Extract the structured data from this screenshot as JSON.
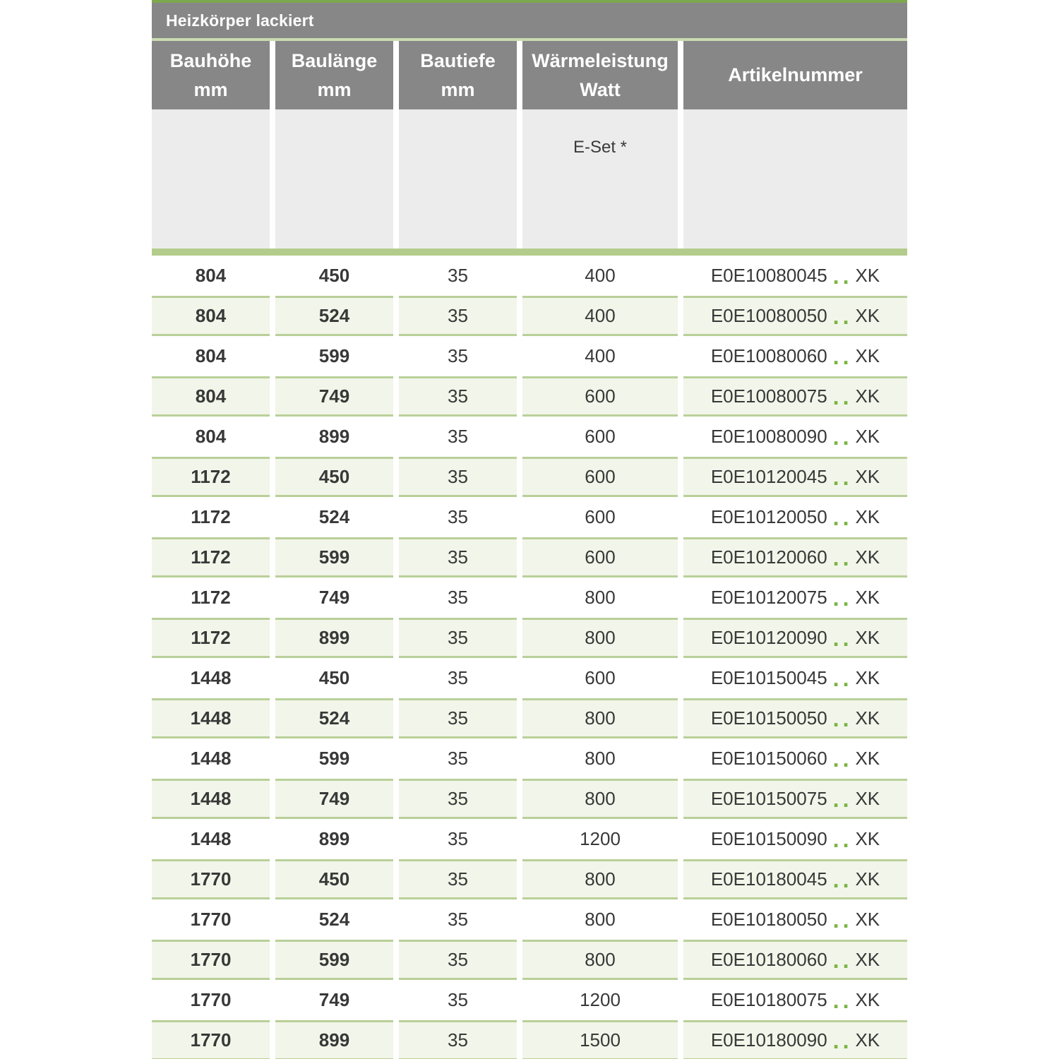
{
  "table": {
    "title": "Heizkörper lackiert",
    "columns": [
      {
        "line1": "Bauhöhe",
        "line2": "mm"
      },
      {
        "line1": "Baulänge",
        "line2": "mm"
      },
      {
        "line1": "Bautiefe",
        "line2": "mm"
      },
      {
        "line1": "Wärmeleistung",
        "line2": "Watt"
      },
      {
        "line1": "Artikelnummer",
        "line2": ""
      }
    ],
    "subheader": {
      "eset_label": "E-Set *"
    },
    "rows": [
      {
        "bauhoehe": "804",
        "baulaenge": "450",
        "bautiefe": "35",
        "watt": "400",
        "artikel": "E0E10080045",
        "dots": "..",
        "suffix": "XK"
      },
      {
        "bauhoehe": "804",
        "baulaenge": "524",
        "bautiefe": "35",
        "watt": "400",
        "artikel": "E0E10080050",
        "dots": "..",
        "suffix": "XK"
      },
      {
        "bauhoehe": "804",
        "baulaenge": "599",
        "bautiefe": "35",
        "watt": "400",
        "artikel": "E0E10080060",
        "dots": "..",
        "suffix": "XK"
      },
      {
        "bauhoehe": "804",
        "baulaenge": "749",
        "bautiefe": "35",
        "watt": "600",
        "artikel": "E0E10080075",
        "dots": "..",
        "suffix": "XK"
      },
      {
        "bauhoehe": "804",
        "baulaenge": "899",
        "bautiefe": "35",
        "watt": "600",
        "artikel": "E0E10080090",
        "dots": "..",
        "suffix": "XK"
      },
      {
        "bauhoehe": "1172",
        "baulaenge": "450",
        "bautiefe": "35",
        "watt": "600",
        "artikel": "E0E10120045",
        "dots": "..",
        "suffix": "XK"
      },
      {
        "bauhoehe": "1172",
        "baulaenge": "524",
        "bautiefe": "35",
        "watt": "600",
        "artikel": "E0E10120050",
        "dots": "..",
        "suffix": "XK"
      },
      {
        "bauhoehe": "1172",
        "baulaenge": "599",
        "bautiefe": "35",
        "watt": "600",
        "artikel": "E0E10120060",
        "dots": "..",
        "suffix": "XK"
      },
      {
        "bauhoehe": "1172",
        "baulaenge": "749",
        "bautiefe": "35",
        "watt": "800",
        "artikel": "E0E10120075",
        "dots": "..",
        "suffix": "XK"
      },
      {
        "bauhoehe": "1172",
        "baulaenge": "899",
        "bautiefe": "35",
        "watt": "800",
        "artikel": "E0E10120090",
        "dots": "..",
        "suffix": "XK"
      },
      {
        "bauhoehe": "1448",
        "baulaenge": "450",
        "bautiefe": "35",
        "watt": "600",
        "artikel": "E0E10150045",
        "dots": "..",
        "suffix": "XK"
      },
      {
        "bauhoehe": "1448",
        "baulaenge": "524",
        "bautiefe": "35",
        "watt": "800",
        "artikel": "E0E10150050",
        "dots": "..",
        "suffix": "XK"
      },
      {
        "bauhoehe": "1448",
        "baulaenge": "599",
        "bautiefe": "35",
        "watt": "800",
        "artikel": "E0E10150060",
        "dots": "..",
        "suffix": "XK"
      },
      {
        "bauhoehe": "1448",
        "baulaenge": "749",
        "bautiefe": "35",
        "watt": "800",
        "artikel": "E0E10150075",
        "dots": "..",
        "suffix": "XK"
      },
      {
        "bauhoehe": "1448",
        "baulaenge": "899",
        "bautiefe": "35",
        "watt": "1200",
        "artikel": "E0E10150090",
        "dots": "..",
        "suffix": "XK"
      },
      {
        "bauhoehe": "1770",
        "baulaenge": "450",
        "bautiefe": "35",
        "watt": "800",
        "artikel": "E0E10180045",
        "dots": "..",
        "suffix": "XK"
      },
      {
        "bauhoehe": "1770",
        "baulaenge": "524",
        "bautiefe": "35",
        "watt": "800",
        "artikel": "E0E10180050",
        "dots": "..",
        "suffix": "XK"
      },
      {
        "bauhoehe": "1770",
        "baulaenge": "599",
        "bautiefe": "35",
        "watt": "800",
        "artikel": "E0E10180060",
        "dots": "..",
        "suffix": "XK"
      },
      {
        "bauhoehe": "1770",
        "baulaenge": "749",
        "bautiefe": "35",
        "watt": "1200",
        "artikel": "E0E10180075",
        "dots": "..",
        "suffix": "XK"
      },
      {
        "bauhoehe": "1770",
        "baulaenge": "899",
        "bautiefe": "35",
        "watt": "1500",
        "artikel": "E0E10180090",
        "dots": "..",
        "suffix": "XK"
      }
    ]
  },
  "colors": {
    "accent_green_top": "#7da84e",
    "header_gray": "#878787",
    "pale_green_separator": "#cbdbb0",
    "subheader_gray": "#ececec",
    "body_separator_green": "#b3cc8c",
    "row_green_bg": "#f2f5e9",
    "row_green_border": "#b9d099",
    "artikel_dots_green": "#79b442",
    "text_dark": "#383838"
  }
}
